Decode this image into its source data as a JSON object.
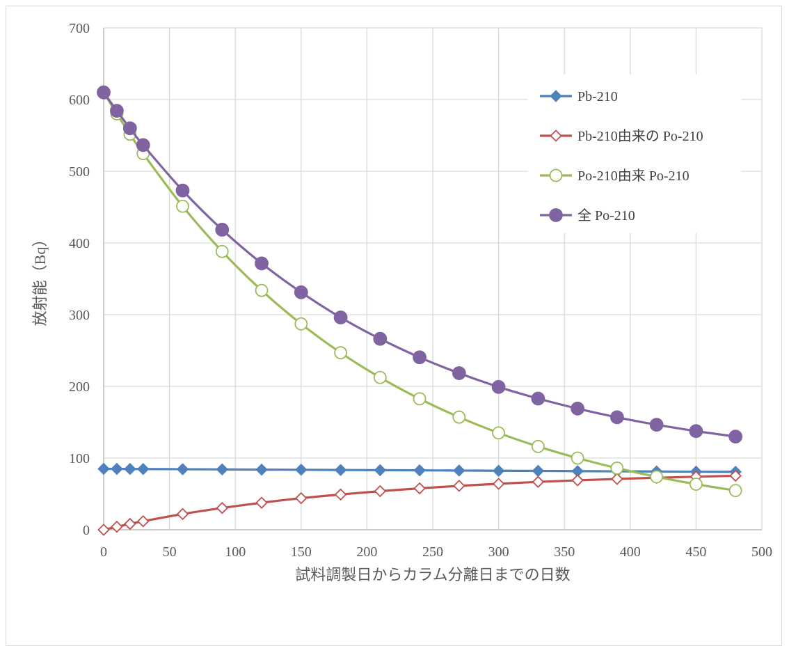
{
  "chart_data": {
    "type": "line",
    "title": "",
    "xlabel": "試料調製日からカラム分離日までの日数",
    "ylabel": "放射能（Bq）",
    "xlim": [
      0,
      500
    ],
    "ylim": [
      0,
      700
    ],
    "x_ticks": [
      0,
      50,
      100,
      150,
      200,
      250,
      300,
      350,
      400,
      450,
      500
    ],
    "y_ticks": [
      0,
      100,
      200,
      300,
      400,
      500,
      600,
      700
    ],
    "x_tick_labels": [
      "0",
      "50",
      "100",
      "150",
      "200",
      "250",
      "300",
      "350",
      "400",
      "450",
      "500"
    ],
    "y_tick_labels": [
      "0",
      "100",
      "200",
      "300",
      "400",
      "500",
      "600",
      "700"
    ],
    "grid": true,
    "legend_position": "top-right",
    "x": [
      0,
      10,
      20,
      30,
      60,
      90,
      120,
      150,
      180,
      210,
      240,
      270,
      300,
      330,
      360,
      390,
      420,
      450,
      480
    ],
    "series": [
      {
        "name": "Pb-210",
        "color": "#4f81bd",
        "marker": "diamond-filled",
        "values": [
          85,
          84.9,
          84.8,
          84.7,
          84.5,
          84.2,
          83.9,
          83.7,
          83.4,
          83.1,
          82.9,
          82.6,
          82.3,
          82.1,
          81.8,
          81.5,
          81.3,
          81.0,
          80.8
        ]
      },
      {
        "name": "Pb-210由来の Po-210",
        "color": "#c0504d",
        "marker": "diamond-open",
        "values": [
          0,
          4.2,
          8.2,
          11.9,
          22,
          30.4,
          37.7,
          44.1,
          49.2,
          53.9,
          57.8,
          61.3,
          64.1,
          66.8,
          69,
          70.9,
          72.6,
          74,
          75.3
        ]
      },
      {
        "name": "Po-210由来 Po-210",
        "color": "#9bbb59",
        "marker": "circle-open",
        "values": [
          610,
          580.1,
          551.7,
          524.6,
          451.2,
          388.1,
          333.8,
          287.1,
          246.9,
          212.4,
          182.7,
          157.1,
          135.1,
          116.2,
          100,
          86,
          73.9,
          63.6,
          54.7
        ]
      },
      {
        "name": "全 Po-210",
        "color": "#8064a2",
        "marker": "circle-filled",
        "values": [
          610,
          584.3,
          559.9,
          536.5,
          473.2,
          418.5,
          371.5,
          331.2,
          296.1,
          266.3,
          240.5,
          218.4,
          199.2,
          183,
          169,
          156.9,
          146.5,
          137.6,
          130
        ]
      }
    ]
  }
}
